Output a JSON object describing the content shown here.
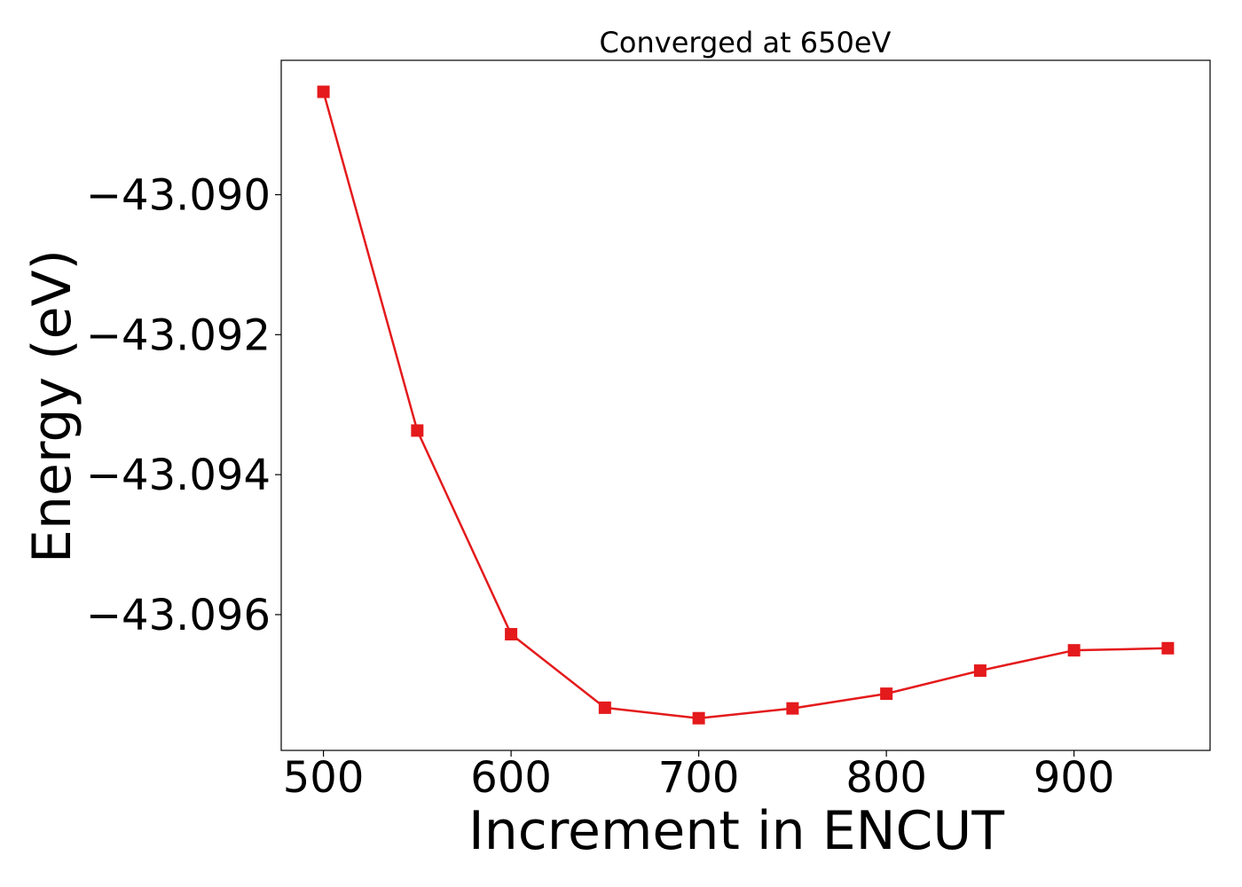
{
  "chart_data": {
    "type": "line",
    "title": "Converged at 650eV",
    "xlabel": "Increment in ENCUT",
    "ylabel": "Energy (eV)",
    "x": [
      500,
      550,
      600,
      650,
      700,
      750,
      800,
      850,
      900,
      950
    ],
    "series": [
      {
        "values": [
          -43.08853,
          -43.09337,
          -43.09628,
          -43.09733,
          -43.09748,
          -43.09734,
          -43.09713,
          -43.0968,
          -43.09651,
          -43.09648
        ],
        "color": "#e41a1c",
        "marker": "square"
      }
    ],
    "xlim": [
      477.5,
      972.5
    ],
    "ylim": [
      -43.09794,
      -43.08808
    ],
    "xticks": [
      500,
      600,
      700,
      800,
      900
    ],
    "xtick_labels": [
      "500",
      "600",
      "700",
      "800",
      "900"
    ],
    "yticks": [
      -43.09,
      -43.092,
      -43.094,
      -43.096
    ],
    "ytick_labels": [
      "−43.090",
      "−43.092",
      "−43.094",
      "−43.096"
    ],
    "grid": false,
    "legend": "none"
  }
}
